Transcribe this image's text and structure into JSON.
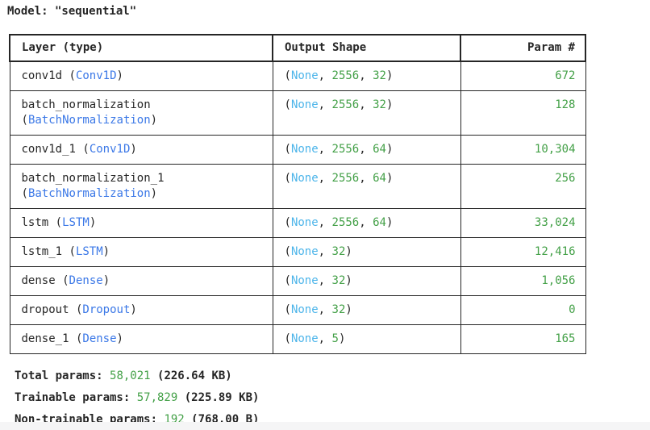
{
  "title": "Model: \"sequential\"",
  "colors": {
    "text": "#262626",
    "class_name_blue": "#3b78e7",
    "none_cyan": "#4db5ea",
    "number_green": "#43a047",
    "table_border": "#262626",
    "background": "#ffffff",
    "bottom_strip": "#f5f5f6"
  },
  "table": {
    "headers": [
      "Layer (type)",
      "Output Shape",
      "Param #"
    ],
    "rows": [
      {
        "name": "conv1d",
        "class": "Conv1D",
        "wrap": false,
        "shape_none": "None",
        "dims": [
          "2556",
          "32"
        ],
        "params": "672"
      },
      {
        "name": "batch_normalization",
        "class": "BatchNormalization",
        "wrap": true,
        "shape_none": "None",
        "dims": [
          "2556",
          "32"
        ],
        "params": "128"
      },
      {
        "name": "conv1d_1",
        "class": "Conv1D",
        "wrap": false,
        "shape_none": "None",
        "dims": [
          "2556",
          "64"
        ],
        "params": "10,304"
      },
      {
        "name": "batch_normalization_1",
        "class": "BatchNormalization",
        "wrap": true,
        "shape_none": "None",
        "dims": [
          "2556",
          "64"
        ],
        "params": "256"
      },
      {
        "name": "lstm",
        "class": "LSTM",
        "wrap": false,
        "shape_none": "None",
        "dims": [
          "2556",
          "64"
        ],
        "params": "33,024"
      },
      {
        "name": "lstm_1",
        "class": "LSTM",
        "wrap": false,
        "shape_none": "None",
        "dims": [
          "32"
        ],
        "params": "12,416"
      },
      {
        "name": "dense",
        "class": "Dense",
        "wrap": false,
        "shape_none": "None",
        "dims": [
          "32"
        ],
        "params": "1,056"
      },
      {
        "name": "dropout",
        "class": "Dropout",
        "wrap": false,
        "shape_none": "None",
        "dims": [
          "32"
        ],
        "params": "0"
      },
      {
        "name": "dense_1",
        "class": "Dense",
        "wrap": false,
        "shape_none": "None",
        "dims": [
          "5"
        ],
        "params": "165"
      }
    ]
  },
  "totals": [
    {
      "label": "Total params: ",
      "value": "58,021",
      "size": " (226.64 KB)"
    },
    {
      "label": "Trainable params: ",
      "value": "57,829",
      "size": " (225.89 KB)"
    },
    {
      "label": "Non-trainable params: ",
      "value": "192",
      "size": " (768.00 B)"
    }
  ]
}
